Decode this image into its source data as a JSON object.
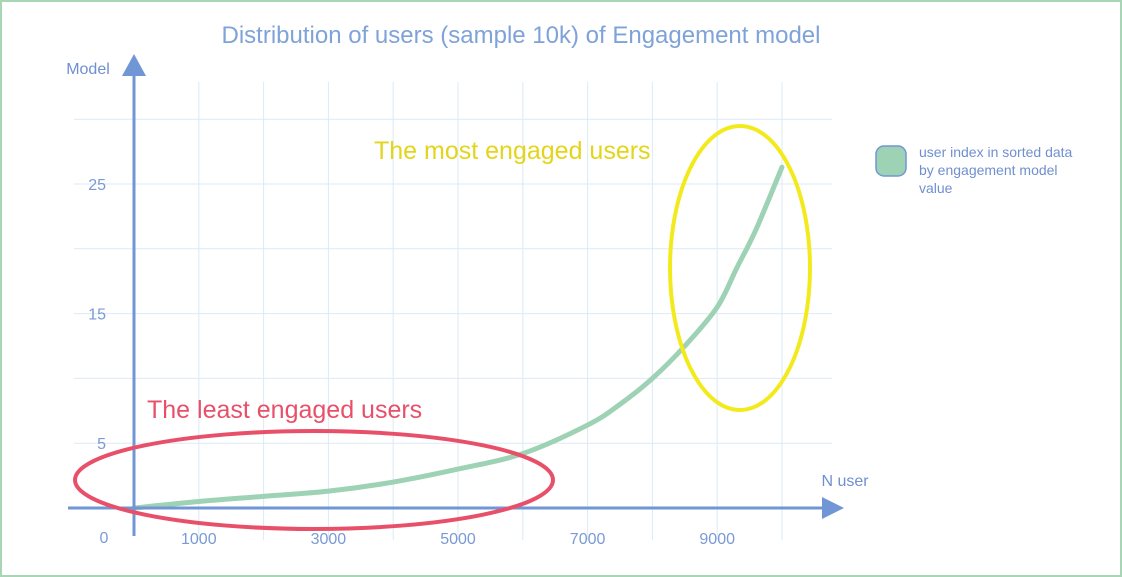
{
  "chart_data": {
    "type": "line",
    "title": "Distribution of users (sample 10k) of Engagement model",
    "xlabel": "N user",
    "ylabel": "Model",
    "x_ticks": [
      1000,
      3000,
      5000,
      7000,
      9000
    ],
    "y_ticks": [
      5,
      15,
      25
    ],
    "origin_label": "0",
    "xlim": [
      0,
      10500
    ],
    "ylim": [
      0,
      30
    ],
    "grid": true,
    "legend_position": "right",
    "series": [
      {
        "name": "user index in sorted data by engagement model value",
        "color": "#9ed2b4",
        "x": [
          0,
          1000,
          2000,
          3000,
          4000,
          5000,
          6000,
          7000,
          7500,
          8000,
          8500,
          9000,
          9300,
          9600,
          10000
        ],
        "y": [
          0,
          0.5,
          0.9,
          1.3,
          2.0,
          3.0,
          4.2,
          6.4,
          8.0,
          10.0,
          12.5,
          15.5,
          18.5,
          21.5,
          26.3
        ]
      }
    ],
    "annotations": {
      "most": "The most engaged users",
      "least": "The least engaged users"
    }
  },
  "colors": {
    "axis": "#7096d6",
    "grid": "#dbeaf6",
    "line": "#9ed2b4",
    "most_ellipse": "#f3ea1e",
    "least_ellipse": "#e8506a",
    "frame": "#a8d5b5"
  }
}
